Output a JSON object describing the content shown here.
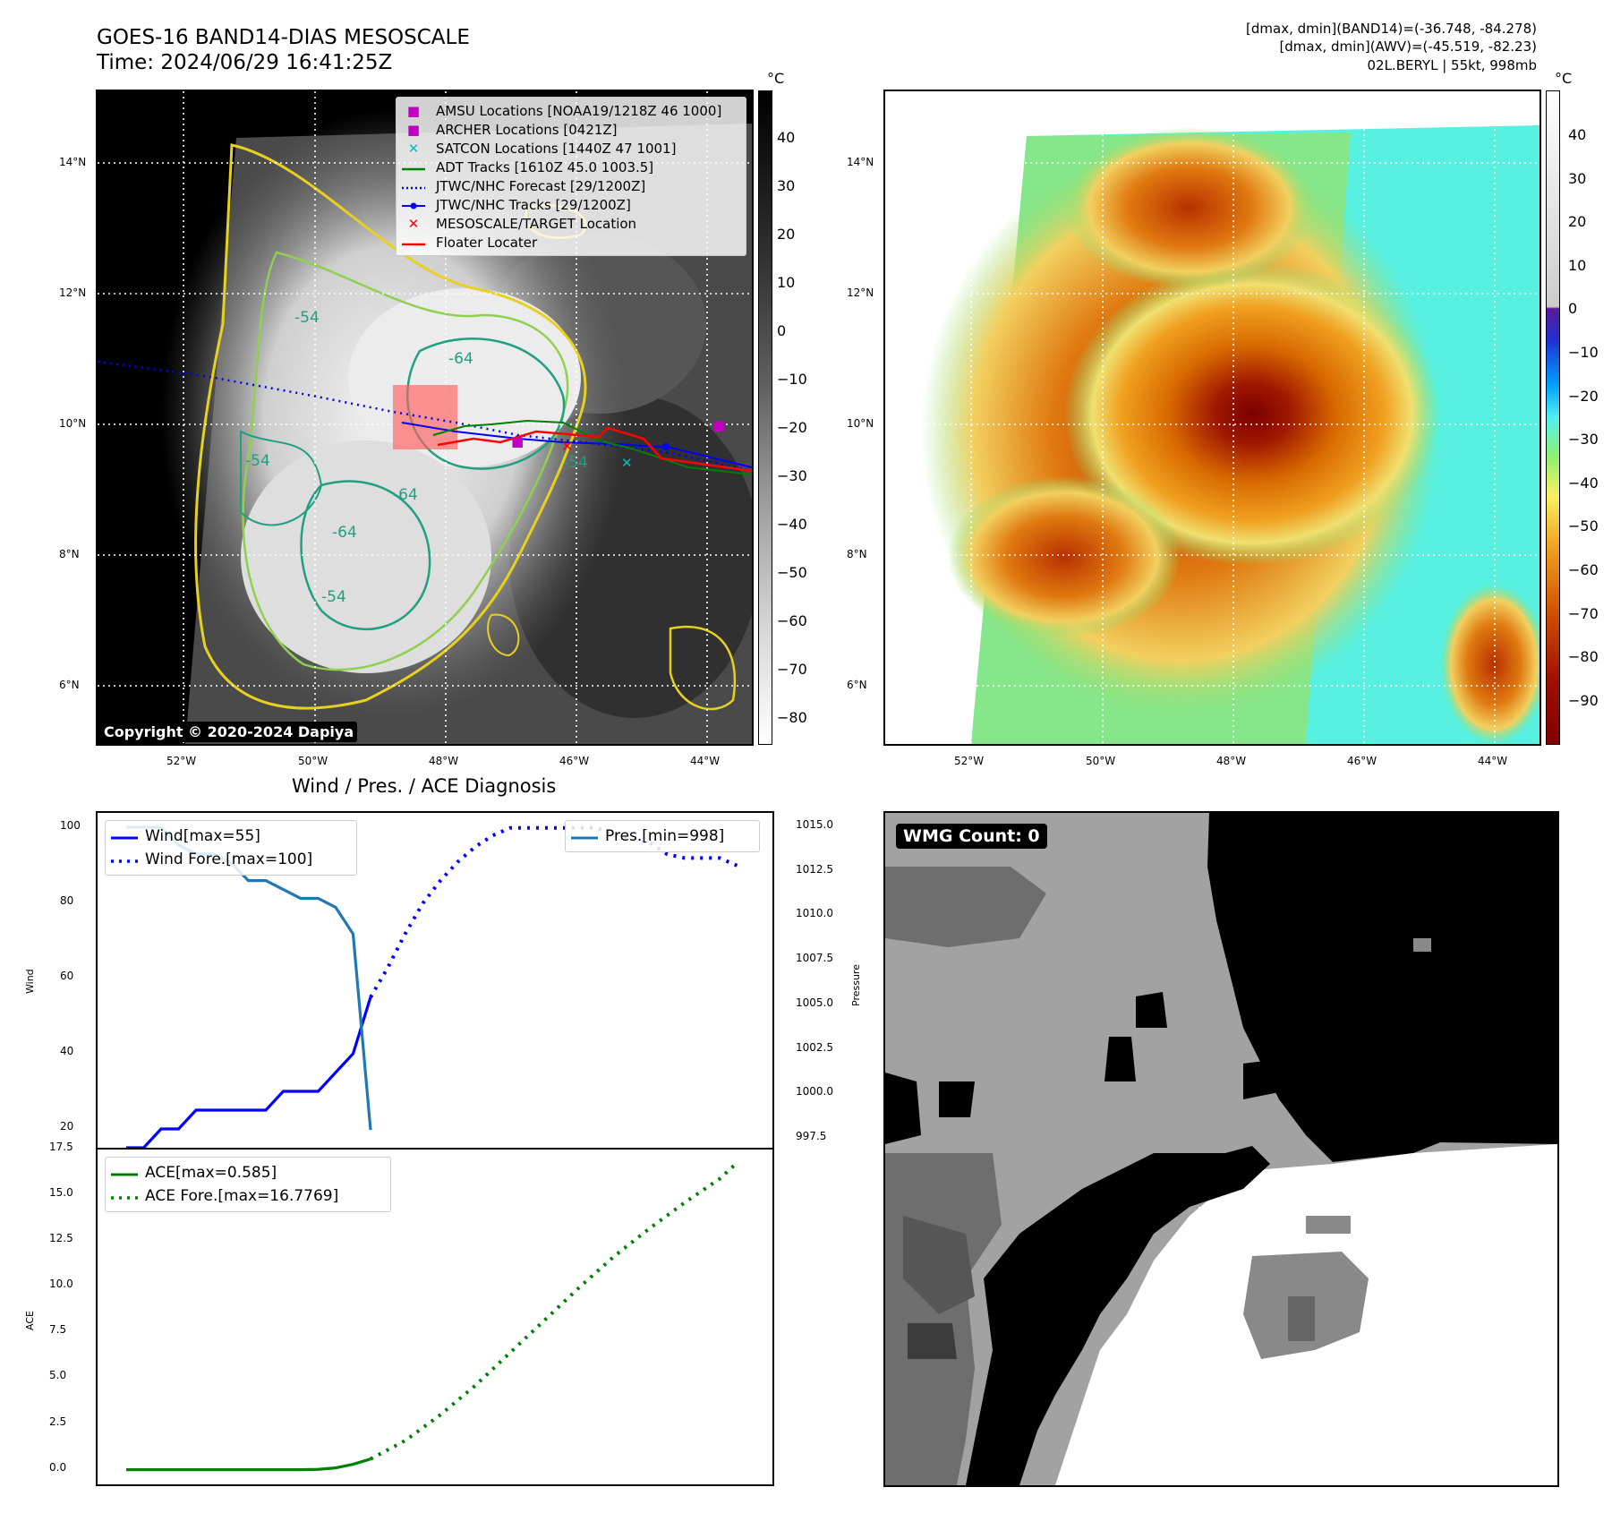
{
  "header": {
    "title_line1": "GOES-16 BAND14-DIAS MESOSCALE",
    "title_line2": "Time: 2024/06/29 16:41:25Z",
    "info_line1": "[dmax, dmin](BAND14)=(-36.748, -84.278)",
    "info_line2": "[dmax, dmin](AWV)=(-45.519, -82.23)",
    "info_line3": "02L.BERYL | 55kt, 998mb"
  },
  "map_axes": {
    "lat_ticks": [
      "14°N",
      "12°N",
      "10°N",
      "8°N",
      "6°N"
    ],
    "lon_ticks": [
      "52°W",
      "50°W",
      "48°W",
      "46°W",
      "44°W"
    ]
  },
  "colorbar_left": {
    "unit": "°C",
    "ticks": [
      "40",
      "30",
      "20",
      "10",
      "0",
      "−10",
      "−20",
      "−30",
      "−40",
      "−50",
      "−60",
      "−70",
      "−80"
    ]
  },
  "colorbar_right": {
    "unit": "°C",
    "ticks": [
      "40",
      "30",
      "20",
      "10",
      "0",
      "−10",
      "−20",
      "−30",
      "−40",
      "−50",
      "−60",
      "−70",
      "−80",
      "−90"
    ]
  },
  "legend_map": [
    {
      "label": "AMSU Locations [NOAA19/1218Z 46 1000]",
      "symbol": "square",
      "color": "#c000c0"
    },
    {
      "label": "ARCHER Locations [0421Z]",
      "symbol": "square",
      "color": "#c000c0"
    },
    {
      "label": "SATCON Locations [1440Z 47 1001]",
      "symbol": "x",
      "color": "#00c0c0"
    },
    {
      "label": "ADT Tracks [1610Z 45.0 1003.5]",
      "symbol": "line",
      "color": "#008000"
    },
    {
      "label": "JTWC/NHC Forecast [29/1200Z]",
      "symbol": "dotted",
      "color": "#0000ff"
    },
    {
      "label": "JTWC/NHC Tracks [29/1200Z]",
      "symbol": "line-dot",
      "color": "#0000ff"
    },
    {
      "label": "MESOSCALE/TARGET Location",
      "symbol": "x",
      "color": "#ff0000"
    },
    {
      "label": "Floater Locater",
      "symbol": "line",
      "color": "#ff0000"
    }
  ],
  "contour_labels": [
    "-64",
    "-54",
    "-64",
    "-54",
    "-54",
    "-64",
    "-54"
  ],
  "copyright": "Copyright © 2020-2024 Dapiya",
  "wmg": {
    "label": "WMG Count: 0"
  },
  "diag": {
    "title": "Wind / Pres. / ACE Diagnosis",
    "wind_axis_label": "Wind",
    "pressure_axis_label": "Pressure",
    "ace_axis_label": "ACE",
    "legend_wind": [
      "Wind[max=55]",
      "Wind Fore.[max=100]"
    ],
    "legend_pres": [
      "Pres.[min=998]"
    ],
    "legend_ace": [
      "ACE[max=0.585]",
      "ACE Fore.[max=16.7769]"
    ]
  },
  "chart_data": [
    {
      "type": "line",
      "name": "Wind / Pressure",
      "y_ticks": [
        "100",
        "80",
        "60",
        "40",
        "20"
      ],
      "y2_ticks": [
        "1015.0",
        "1012.5",
        "1010.0",
        "1007.5",
        "1005.0",
        "1002.5",
        "1000.0",
        "997.5"
      ],
      "ylim": [
        15,
        104
      ],
      "y2lim": [
        997.0,
        1015.8
      ],
      "series": [
        {
          "name": "Wind[max=55]",
          "color": "#0000ff",
          "style": "solid",
          "x": [
            0,
            1,
            2,
            3,
            4,
            5,
            6,
            7,
            8,
            9,
            10,
            11,
            12,
            13,
            14
          ],
          "values": [
            15,
            15,
            20,
            20,
            25,
            25,
            25,
            25,
            25,
            30,
            30,
            30,
            35,
            40,
            55
          ]
        },
        {
          "name": "Wind Fore.[max=100]",
          "color": "#0000ff",
          "style": "dotted",
          "x": [
            14,
            15,
            16,
            17,
            18,
            19,
            20,
            21,
            22,
            23,
            24,
            25,
            26,
            27,
            28,
            29,
            30,
            31,
            32,
            33,
            34,
            35
          ],
          "values": [
            55,
            63,
            72,
            80,
            86,
            91,
            95,
            98,
            100,
            100,
            100,
            100,
            100,
            100,
            98,
            97,
            96,
            93,
            92,
            92,
            92,
            90
          ]
        },
        {
          "name": "Pres.[min=998]",
          "color": "#1f77b4",
          "style": "solid",
          "axis": "y2",
          "x": [
            0,
            1,
            2,
            3,
            4,
            5,
            6,
            7,
            8,
            9,
            10,
            11,
            12,
            13,
            14
          ],
          "values": [
            1015,
            1015,
            1015,
            1014,
            1013.5,
            1013.5,
            1013,
            1012,
            1012,
            1011.5,
            1011,
            1011,
            1010.5,
            1009,
            998
          ]
        }
      ]
    },
    {
      "type": "line",
      "name": "ACE",
      "y_ticks": [
        "17.5",
        "15.0",
        "12.5",
        "10.0",
        "7.5",
        "5.0",
        "2.5",
        "0.0"
      ],
      "ylim": [
        -0.8,
        17.5
      ],
      "series": [
        {
          "name": "ACE[max=0.585]",
          "color": "#008000",
          "style": "solid",
          "x": [
            0,
            2,
            4,
            6,
            8,
            10,
            11,
            12,
            13,
            14
          ],
          "values": [
            0,
            0,
            0,
            0,
            0,
            0,
            0.02,
            0.1,
            0.3,
            0.585
          ]
        },
        {
          "name": "ACE Fore.[max=16.7769]",
          "color": "#008000",
          "style": "dotted",
          "x": [
            14,
            16,
            18,
            20,
            22,
            24,
            26,
            28,
            30,
            32,
            34,
            35
          ],
          "values": [
            0.585,
            1.6,
            3.0,
            4.6,
            6.4,
            8.2,
            10.0,
            11.7,
            13.2,
            14.6,
            15.9,
            16.7769
          ]
        }
      ]
    }
  ]
}
